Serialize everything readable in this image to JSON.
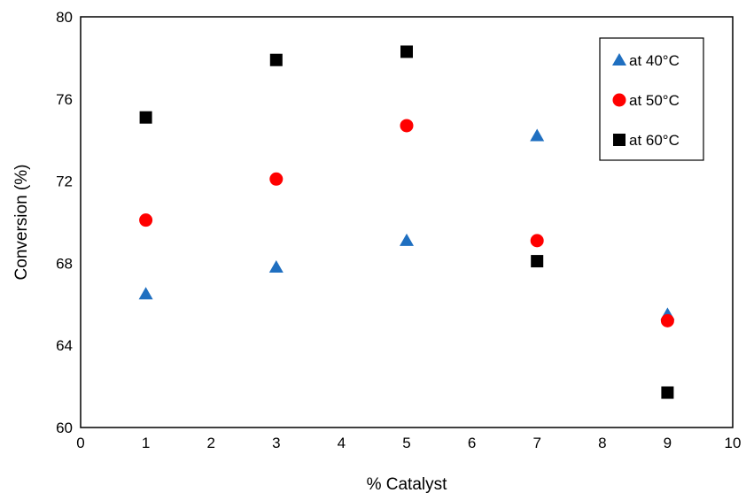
{
  "chart_data": {
    "type": "scatter",
    "xlabel": "% Catalyst",
    "ylabel": "Conversion (%)",
    "xlim": [
      0,
      10
    ],
    "ylim": [
      60,
      80
    ],
    "x_ticks": [
      "0",
      "1",
      "2",
      "3",
      "4",
      "5",
      "6",
      "7",
      "8",
      "9",
      "10"
    ],
    "y_ticks": [
      "60",
      "64",
      "68",
      "72",
      "76",
      "80"
    ],
    "grid": false,
    "legend_position": "top-right",
    "series": [
      {
        "name": "at 40°C",
        "marker": "triangle",
        "color": "#1F6FC0",
        "points": [
          {
            "x": 1,
            "y": 66.5
          },
          {
            "x": 3,
            "y": 67.8
          },
          {
            "x": 5,
            "y": 69.1
          },
          {
            "x": 7,
            "y": 74.2
          },
          {
            "x": 9,
            "y": 65.5
          }
        ]
      },
      {
        "name": "at 50°C",
        "marker": "circle",
        "color": "#FF0000",
        "points": [
          {
            "x": 1,
            "y": 70.1
          },
          {
            "x": 3,
            "y": 72.1
          },
          {
            "x": 5,
            "y": 74.7
          },
          {
            "x": 7,
            "y": 69.1
          },
          {
            "x": 9,
            "y": 65.2
          }
        ]
      },
      {
        "name": "at 60°C",
        "marker": "square",
        "color": "#000000",
        "points": [
          {
            "x": 1,
            "y": 75.1
          },
          {
            "x": 3,
            "y": 77.9
          },
          {
            "x": 5,
            "y": 78.3
          },
          {
            "x": 7,
            "y": 68.1
          },
          {
            "x": 9,
            "y": 61.7
          }
        ]
      }
    ]
  }
}
